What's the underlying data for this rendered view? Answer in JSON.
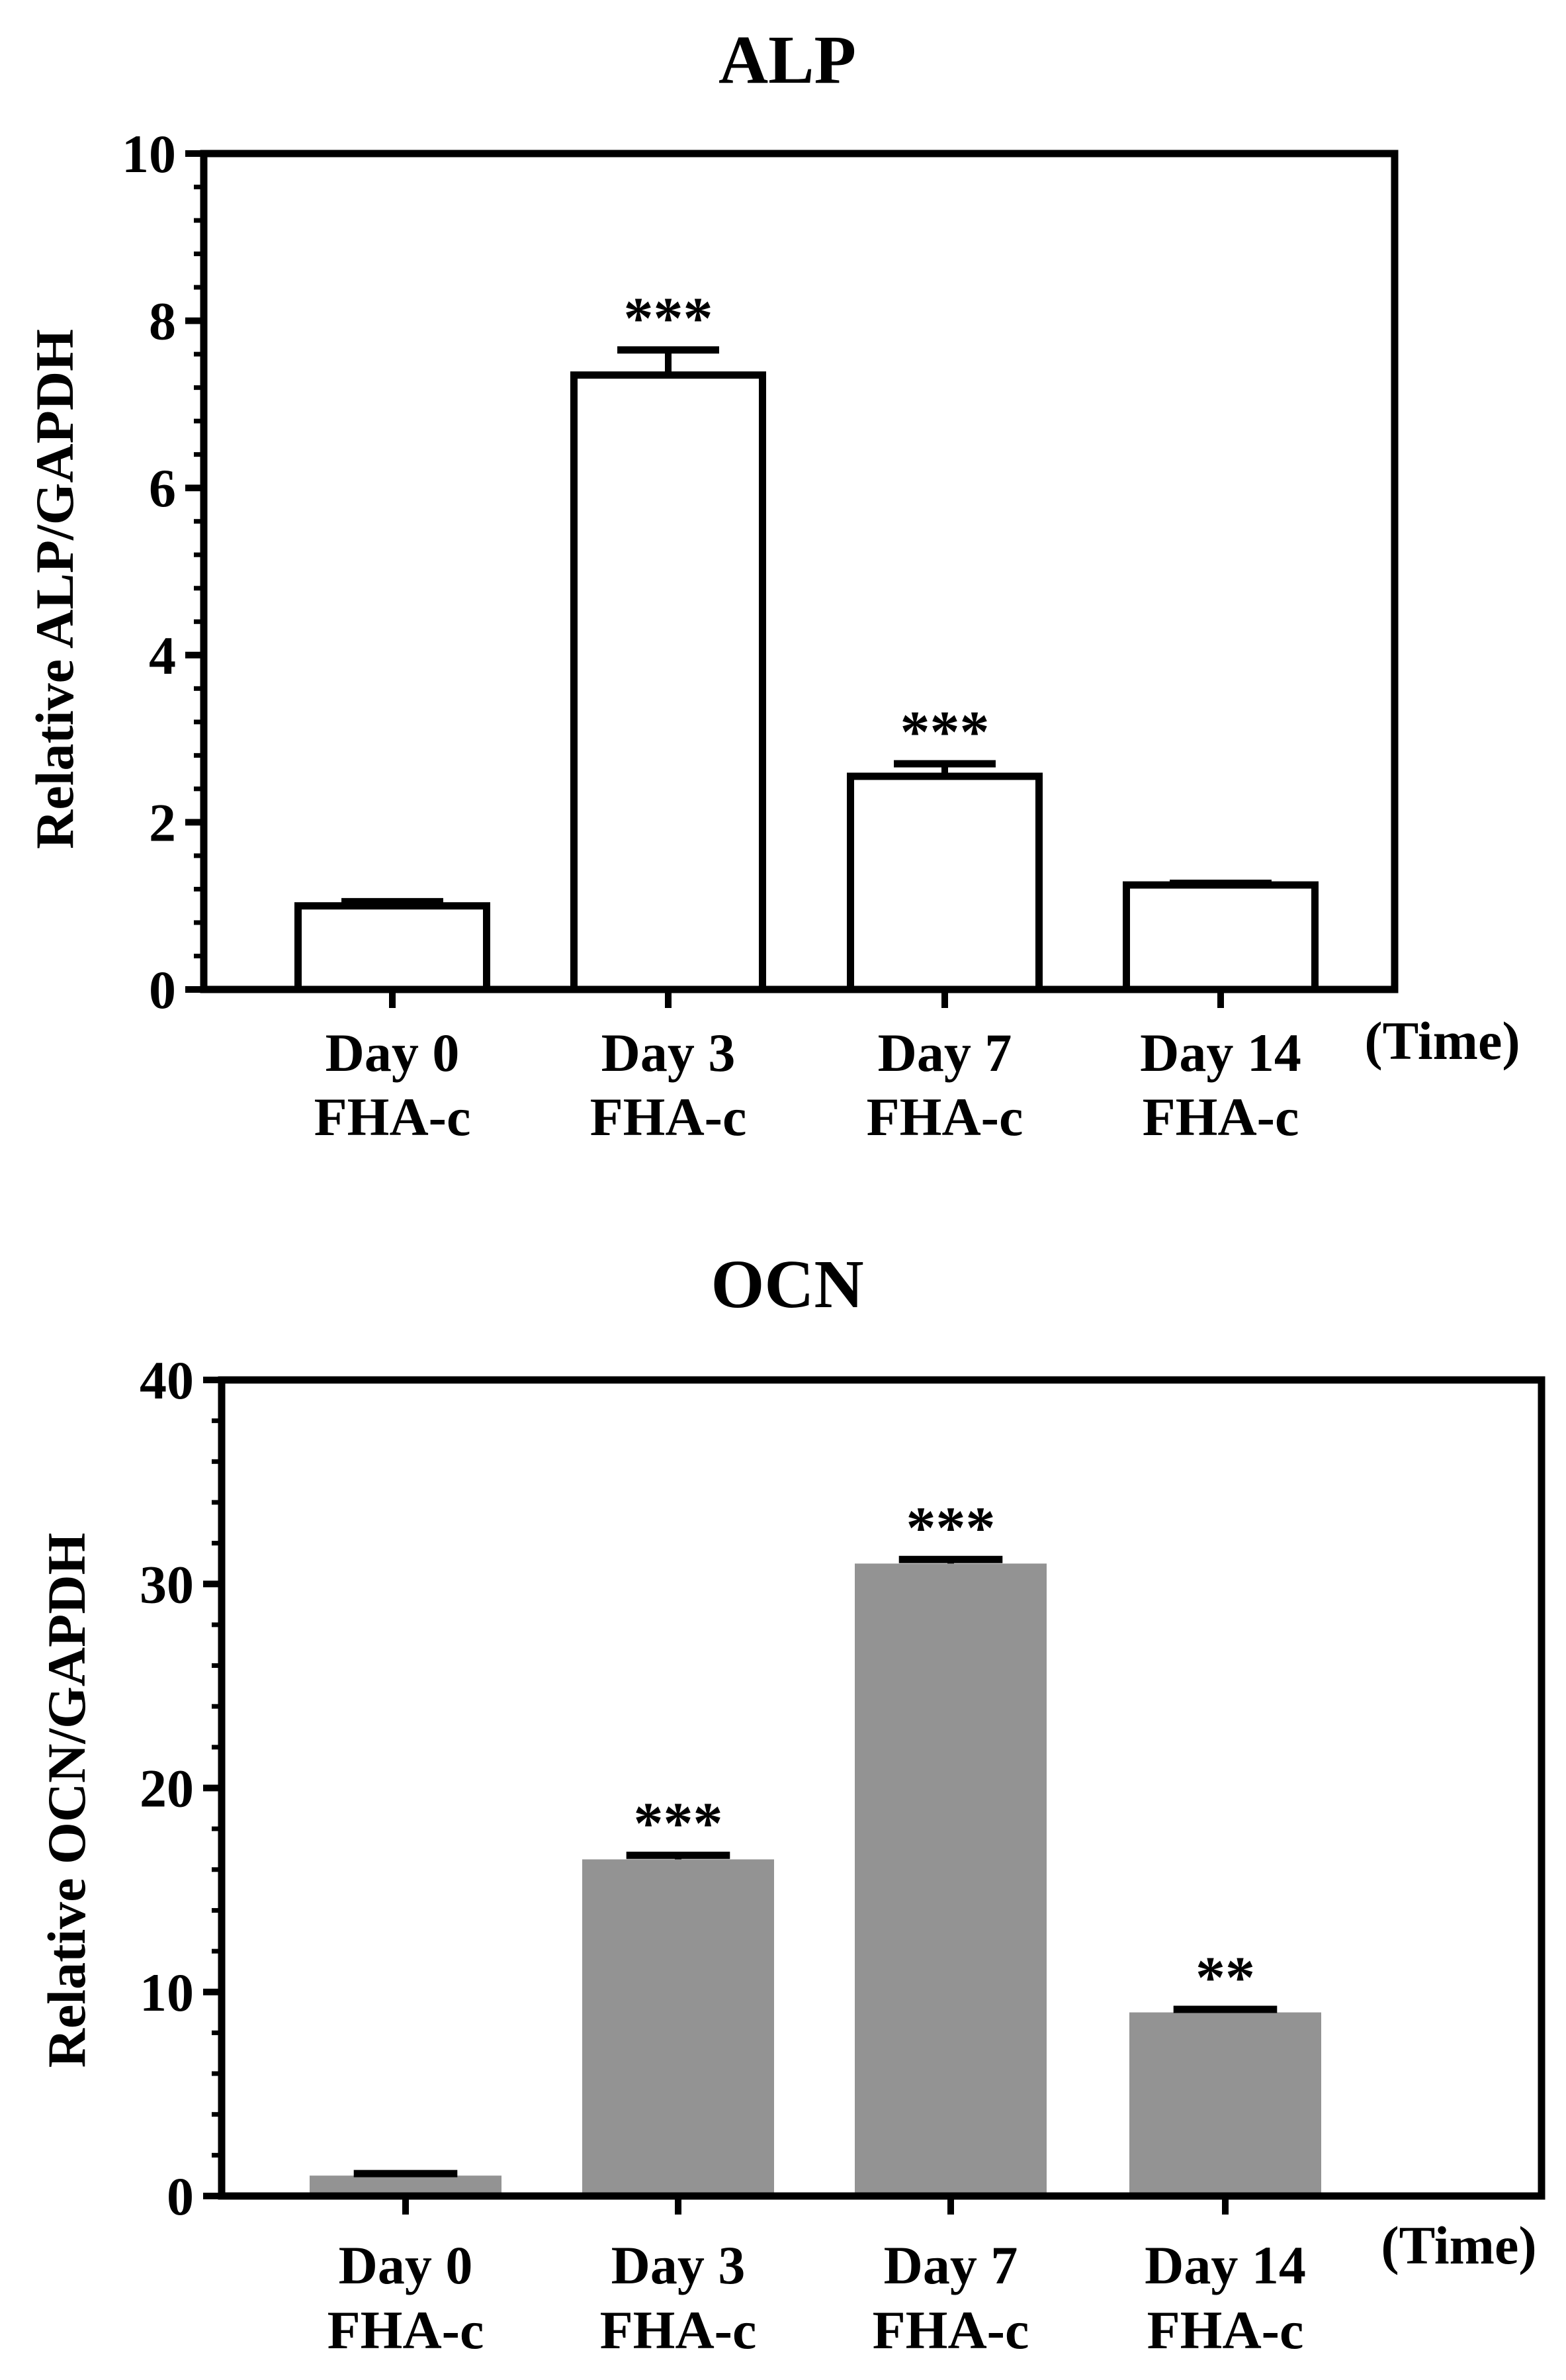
{
  "chart_data": [
    {
      "type": "bar",
      "title": "ALP",
      "ylabel": "Relative ALP/GAPDH",
      "xlabel": "(Time)",
      "categories": [
        {
          "line1": "Day 0",
          "line2": "FHA-c"
        },
        {
          "line1": "Day 3",
          "line2": "FHA-c"
        },
        {
          "line1": "Day 7",
          "line2": "FHA-c"
        },
        {
          "line1": "Day 14",
          "line2": "FHA-c"
        }
      ],
      "values": [
        1.0,
        7.35,
        2.55,
        1.25
      ],
      "errors": [
        0.05,
        0.3,
        0.15,
        0.02
      ],
      "significance": [
        "",
        "***",
        "***",
        ""
      ],
      "ylim": [
        0,
        10
      ],
      "yticks": [
        "0",
        "2",
        "4",
        "6",
        "8",
        "10"
      ],
      "bar_fill": "#ffffff",
      "bar_stroke": "#000000"
    },
    {
      "type": "bar",
      "title": "OCN",
      "ylabel": "Relative OCN/GAPDH",
      "xlabel": "(Time)",
      "categories": [
        {
          "line1": "Day 0",
          "line2": "FHA-c"
        },
        {
          "line1": "Day 3",
          "line2": "FHA-c"
        },
        {
          "line1": "Day 7",
          "line2": "FHA-c"
        },
        {
          "line1": "Day 14",
          "line2": "FHA-c"
        }
      ],
      "values": [
        1.0,
        16.5,
        31.0,
        9.0
      ],
      "errors": [
        0.1,
        0.2,
        0.2,
        0.15
      ],
      "significance": [
        "",
        "***",
        "***",
        "**"
      ],
      "ylim": [
        0,
        40
      ],
      "yticks": [
        "0",
        "10",
        "20",
        "30",
        "40"
      ],
      "bar_fill": "#939393",
      "bar_stroke": "none"
    }
  ]
}
